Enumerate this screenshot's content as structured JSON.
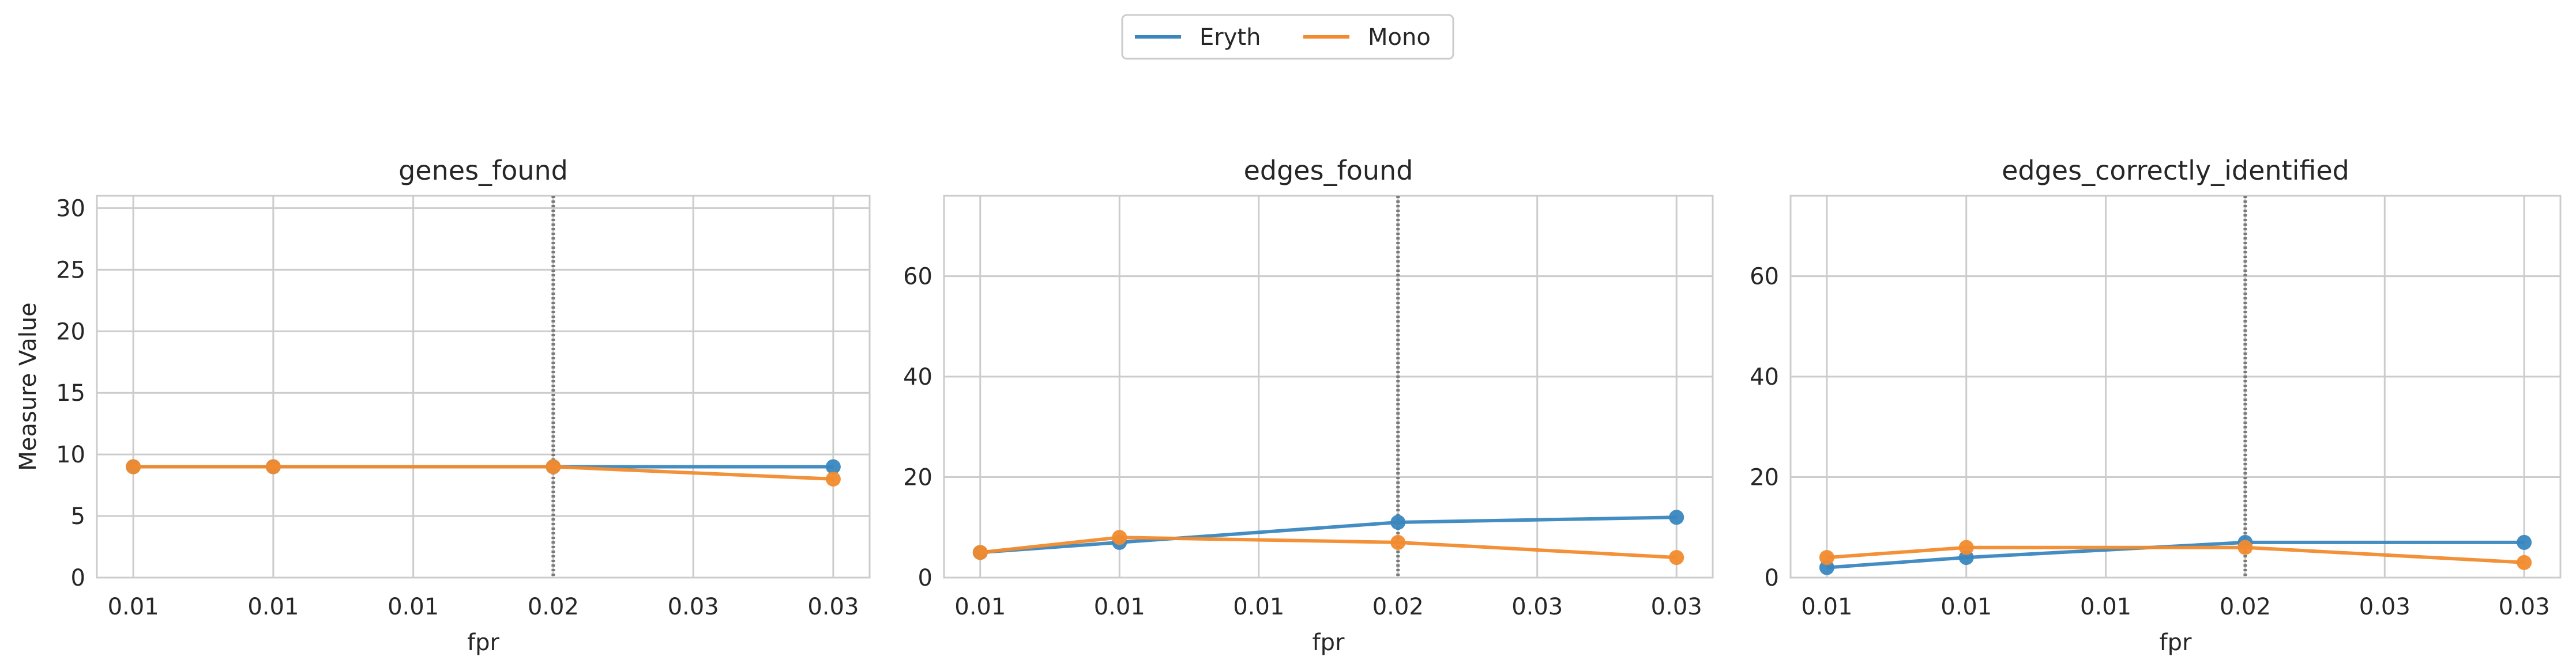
{
  "legend": {
    "placement": "top-center",
    "entries": [
      {
        "label": "Eryth",
        "color": "#3a87c0"
      },
      {
        "label": "Mono",
        "color": "#f28b2e"
      }
    ]
  },
  "chart_data": [
    {
      "type": "line",
      "title": "genes_found",
      "xlabel": "fpr",
      "ylabel": "Measure Value",
      "x_tick_labels": [
        "0.01",
        "0.01",
        "0.01",
        "0.02",
        "0.03",
        "0.03"
      ],
      "x": [
        0.01,
        0.015,
        0.025,
        0.035
      ],
      "xlim": [
        0.0087,
        0.0363
      ],
      "ylim": [
        0,
        31
      ],
      "yticks": [
        0,
        5,
        10,
        15,
        20,
        25,
        30
      ],
      "vline": 0.025,
      "grid": true,
      "series": [
        {
          "name": "Eryth",
          "values": [
            9,
            9,
            9,
            9
          ]
        },
        {
          "name": "Mono",
          "values": [
            9,
            9,
            9,
            8
          ]
        }
      ]
    },
    {
      "type": "line",
      "title": "edges_found",
      "xlabel": "fpr",
      "ylabel": "",
      "x_tick_labels": [
        "0.01",
        "0.01",
        "0.01",
        "0.02",
        "0.03",
        "0.03"
      ],
      "x": [
        0.01,
        0.015,
        0.025,
        0.035
      ],
      "xlim": [
        0.0087,
        0.0363
      ],
      "ylim": [
        0,
        76
      ],
      "yticks": [
        0,
        20,
        40,
        60
      ],
      "vline": 0.025,
      "grid": true,
      "series": [
        {
          "name": "Eryth",
          "values": [
            5,
            7,
            11,
            12
          ]
        },
        {
          "name": "Mono",
          "values": [
            5,
            8,
            7,
            4
          ]
        }
      ]
    },
    {
      "type": "line",
      "title": "edges_correctly_identified",
      "xlabel": "fpr",
      "ylabel": "",
      "x_tick_labels": [
        "0.01",
        "0.01",
        "0.01",
        "0.02",
        "0.03",
        "0.03"
      ],
      "x": [
        0.01,
        0.015,
        0.025,
        0.035
      ],
      "xlim": [
        0.0087,
        0.0363
      ],
      "ylim": [
        0,
        76
      ],
      "yticks": [
        0,
        20,
        40,
        60
      ],
      "vline": 0.025,
      "grid": true,
      "series": [
        {
          "name": "Eryth",
          "values": [
            2,
            4,
            7,
            7
          ]
        },
        {
          "name": "Mono",
          "values": [
            4,
            6,
            6,
            3
          ]
        }
      ]
    }
  ]
}
